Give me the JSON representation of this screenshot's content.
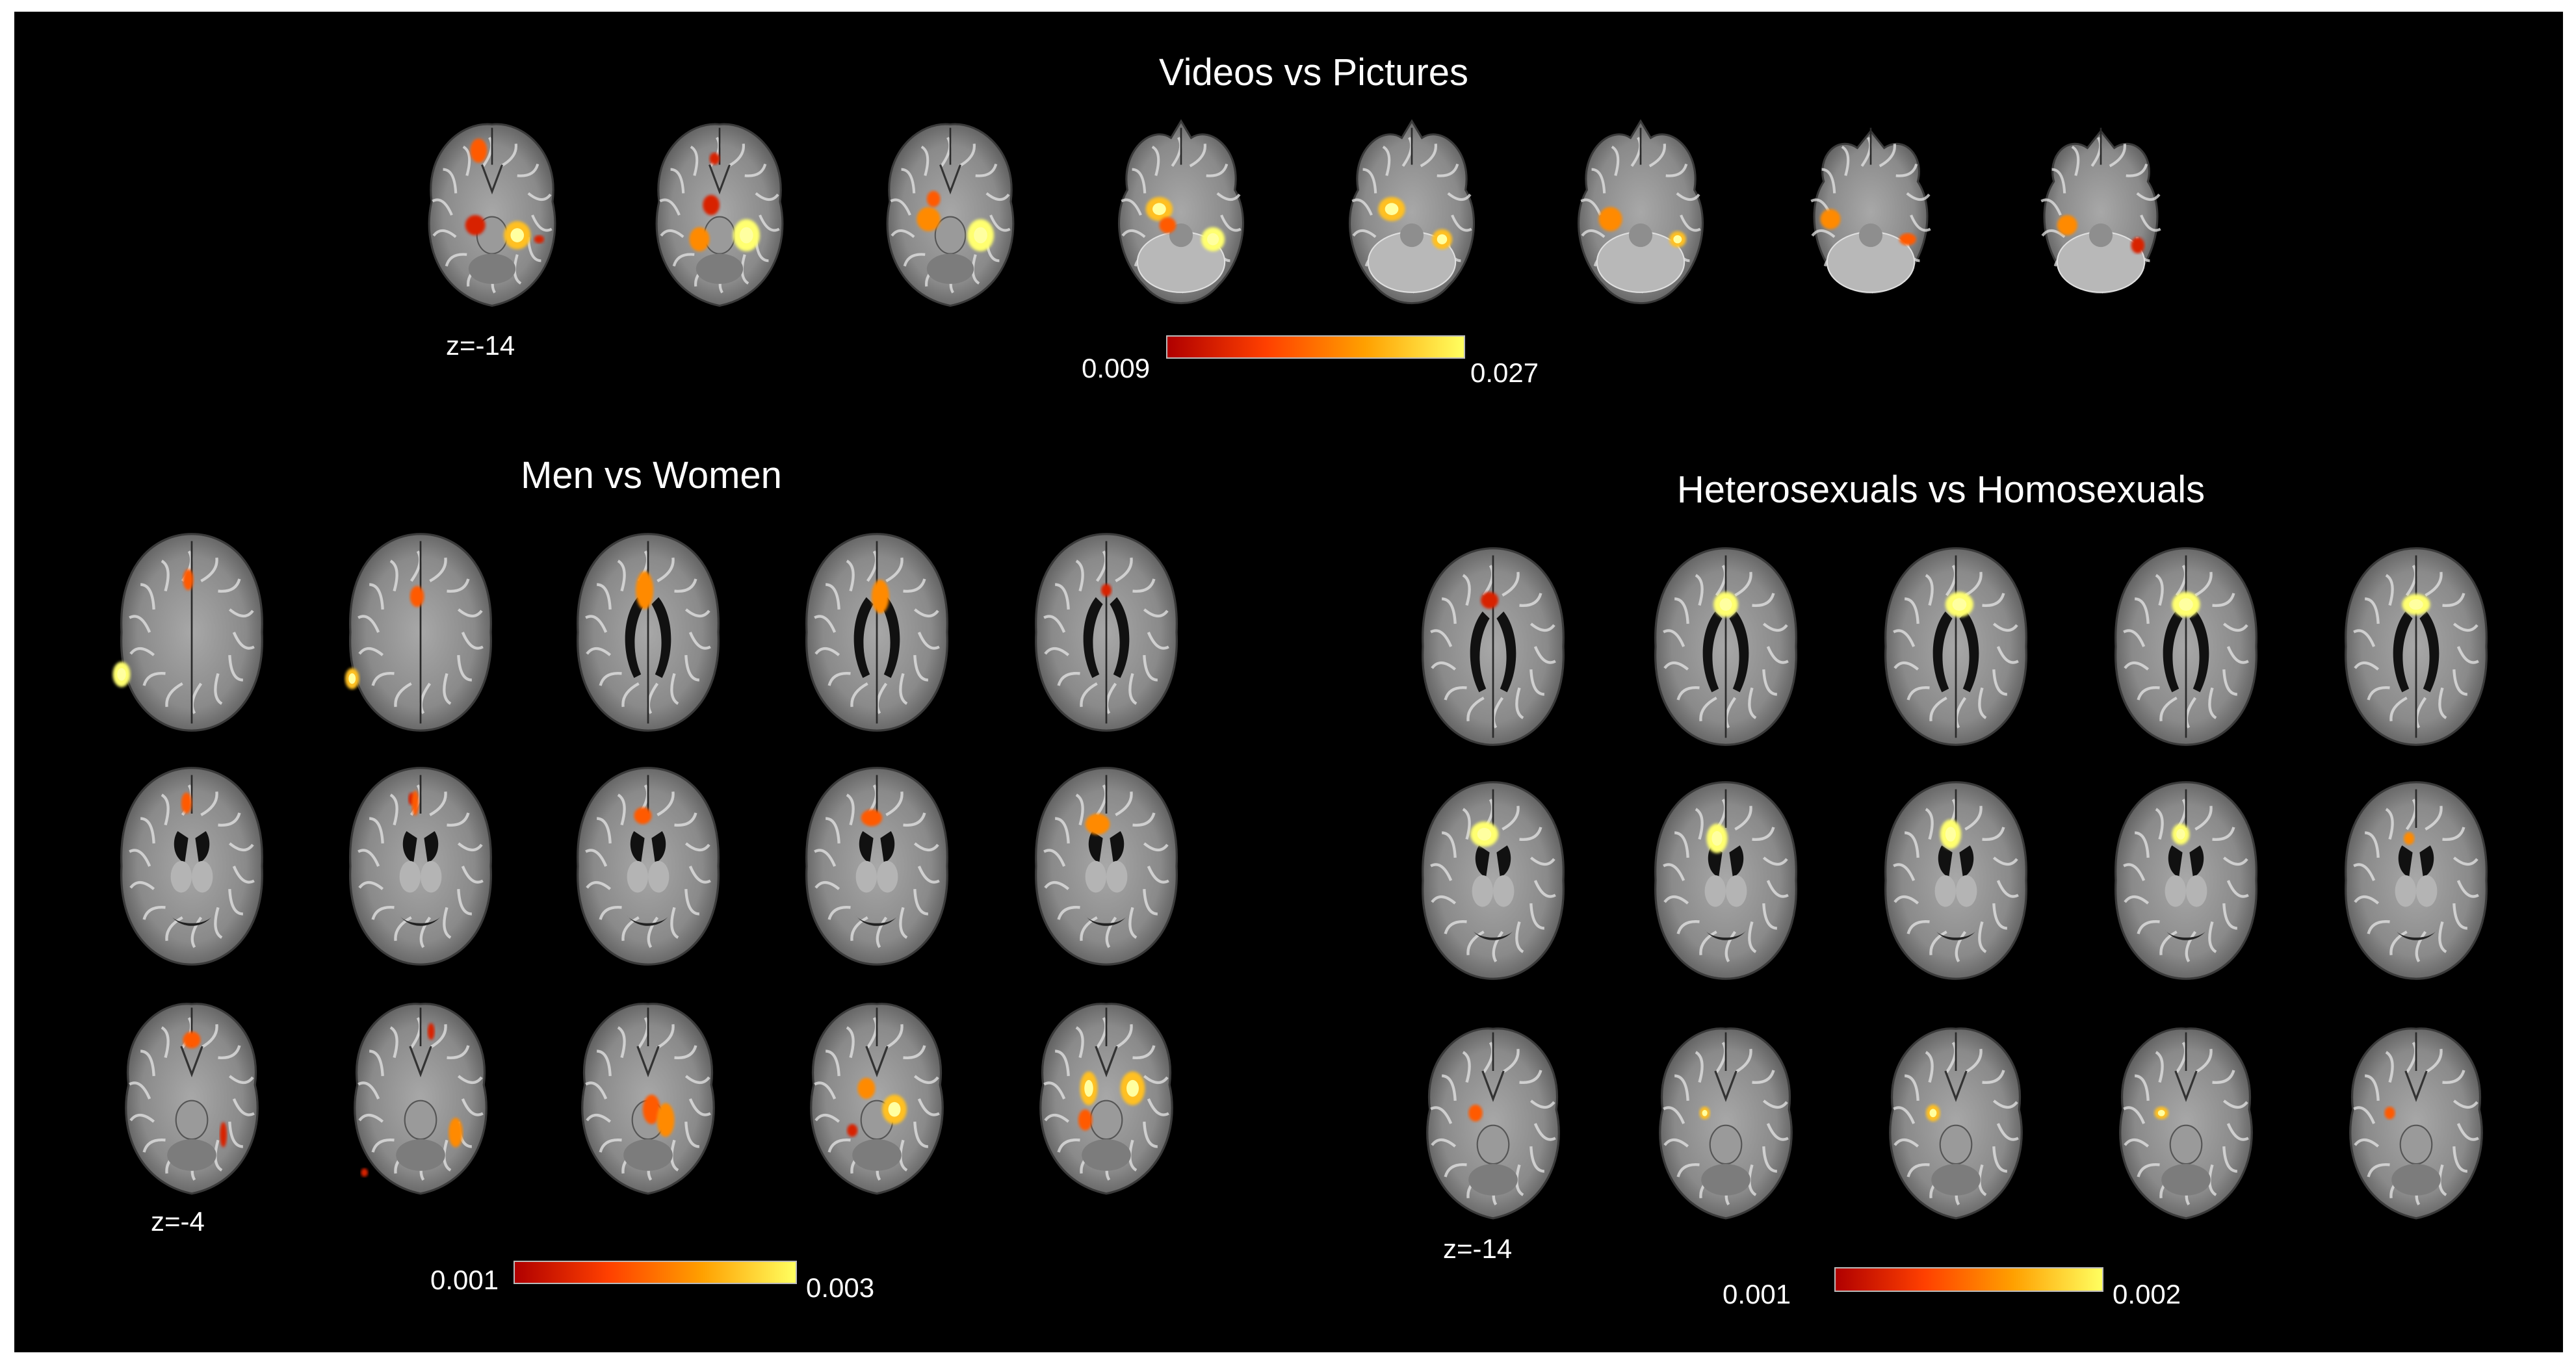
{
  "figure": {
    "background": "#000000",
    "panels": [
      {
        "id": "videos-vs-pictures",
        "title": "Videos vs Pictures",
        "z_label": "z=-14",
        "colorbar": {
          "min_label": "0.009",
          "max_label": "0.027",
          "colors": [
            "#b00000",
            "#ff4000",
            "#ffa000",
            "#ffff60"
          ]
        },
        "slices": [
          {
            "level": "ventral",
            "blobs": [
              [
                0.42,
                0.18,
                0.05,
                0.06,
                0.7
              ],
              [
                0.4,
                0.55,
                0.06,
                0.05,
                0.6
              ],
              [
                0.65,
                0.6,
                0.08,
                0.07,
                0.9
              ],
              [
                0.78,
                0.62,
                0.03,
                0.02,
                0.4
              ]
            ]
          },
          {
            "level": "ventral",
            "blobs": [
              [
                0.45,
                0.45,
                0.05,
                0.05,
                0.6
              ],
              [
                0.38,
                0.62,
                0.06,
                0.06,
                0.8
              ],
              [
                0.66,
                0.6,
                0.08,
                0.08,
                0.95
              ],
              [
                0.47,
                0.22,
                0.03,
                0.03,
                0.5
              ]
            ]
          },
          {
            "level": "ventral",
            "blobs": [
              [
                0.37,
                0.52,
                0.07,
                0.06,
                0.8
              ],
              [
                0.68,
                0.6,
                0.08,
                0.08,
                1.0
              ],
              [
                0.4,
                0.42,
                0.04,
                0.04,
                0.7
              ]
            ]
          },
          {
            "level": "cerebellar",
            "blobs": [
              [
                0.37,
                0.47,
                0.08,
                0.06,
                0.9
              ],
              [
                0.42,
                0.55,
                0.05,
                0.04,
                0.7
              ],
              [
                0.69,
                0.62,
                0.07,
                0.06,
                1.0
              ]
            ]
          },
          {
            "level": "cerebellar",
            "blobs": [
              [
                0.38,
                0.47,
                0.08,
                0.06,
                0.85
              ],
              [
                0.68,
                0.62,
                0.06,
                0.05,
                0.9
              ]
            ]
          },
          {
            "level": "cerebellar",
            "blobs": [
              [
                0.32,
                0.52,
                0.07,
                0.06,
                0.8
              ],
              [
                0.72,
                0.62,
                0.05,
                0.04,
                0.85
              ]
            ]
          },
          {
            "level": "low-cerebellar",
            "blobs": [
              [
                0.26,
                0.52,
                0.06,
                0.05,
                0.8
              ],
              [
                0.72,
                0.62,
                0.05,
                0.03,
                0.7
              ]
            ]
          },
          {
            "level": "low-cerebellar",
            "blobs": [
              [
                0.3,
                0.55,
                0.06,
                0.05,
                0.8
              ],
              [
                0.72,
                0.65,
                0.04,
                0.04,
                0.6
              ]
            ]
          }
        ]
      },
      {
        "id": "men-vs-women",
        "title": "Men vs Women",
        "z_label": "z=-4",
        "colorbar": {
          "min_label": "0.001",
          "max_label": "0.003",
          "colors": [
            "#b00000",
            "#ff4000",
            "#ffa000",
            "#ffff60"
          ]
        },
        "rows": [
          [
            {
              "level": "dorsal",
              "blobs": [
                [
                  0.48,
                  0.25,
                  0.03,
                  0.05,
                  0.7
                ],
                [
                  0.1,
                  0.7,
                  0.05,
                  0.06,
                  1.0
                ]
              ]
            },
            {
              "level": "dorsal",
              "blobs": [
                [
                  0.48,
                  0.33,
                  0.04,
                  0.05,
                  0.7
                ],
                [
                  0.11,
                  0.72,
                  0.04,
                  0.05,
                  0.9
                ]
              ]
            },
            {
              "level": "ventricle",
              "blobs": [
                [
                  0.48,
                  0.3,
                  0.05,
                  0.09,
                  0.8
                ]
              ]
            },
            {
              "level": "ventricle",
              "blobs": [
                [
                  0.52,
                  0.33,
                  0.05,
                  0.08,
                  0.75
                ]
              ]
            },
            {
              "level": "ventricle",
              "blobs": [
                [
                  0.5,
                  0.3,
                  0.03,
                  0.03,
                  0.6
                ]
              ]
            }
          ],
          [
            {
              "level": "thalamic",
              "blobs": [
                [
                  0.47,
                  0.2,
                  0.03,
                  0.05,
                  0.7
                ]
              ]
            },
            {
              "level": "thalamic",
              "blobs": [
                [
                  0.45,
                  0.18,
                  0.02,
                  0.03,
                  0.6
                ],
                [
                  0.47,
                  0.2,
                  0.02,
                  0.06,
                  0.7
                ]
              ]
            },
            {
              "level": "thalamic",
              "blobs": [
                [
                  0.47,
                  0.26,
                  0.05,
                  0.04,
                  0.7
                ]
              ]
            },
            {
              "level": "thalamic",
              "blobs": [
                [
                  0.47,
                  0.27,
                  0.06,
                  0.04,
                  0.7
                ]
              ]
            },
            {
              "level": "thalamic",
              "blobs": [
                [
                  0.45,
                  0.3,
                  0.07,
                  0.05,
                  0.75
                ]
              ]
            }
          ],
          [
            {
              "level": "ventral",
              "blobs": [
                [
                  0.5,
                  0.22,
                  0.05,
                  0.04,
                  0.7
                ],
                [
                  0.68,
                  0.67,
                  0.02,
                  0.06,
                  0.6
                ]
              ]
            },
            {
              "level": "ventral",
              "blobs": [
                [
                  0.56,
                  0.18,
                  0.02,
                  0.04,
                  0.6
                ],
                [
                  0.7,
                  0.66,
                  0.04,
                  0.07,
                  0.75
                ],
                [
                  0.18,
                  0.85,
                  0.02,
                  0.02,
                  0.5
                ]
              ]
            },
            {
              "level": "ventral",
              "blobs": [
                [
                  0.52,
                  0.55,
                  0.05,
                  0.07,
                  0.7
                ],
                [
                  0.6,
                  0.6,
                  0.05,
                  0.08,
                  0.8
                ]
              ]
            },
            {
              "level": "ventral",
              "blobs": [
                [
                  0.44,
                  0.45,
                  0.05,
                  0.05,
                  0.8
                ],
                [
                  0.6,
                  0.55,
                  0.07,
                  0.07,
                  0.85
                ],
                [
                  0.36,
                  0.65,
                  0.03,
                  0.03,
                  0.6
                ]
              ]
            },
            {
              "level": "ventral",
              "blobs": [
                [
                  0.4,
                  0.45,
                  0.05,
                  0.08,
                  0.9
                ],
                [
                  0.65,
                  0.45,
                  0.07,
                  0.08,
                  0.85
                ],
                [
                  0.38,
                  0.6,
                  0.04,
                  0.05,
                  0.7
                ]
              ]
            }
          ]
        ]
      },
      {
        "id": "hetero-vs-homo",
        "title": "Heterosexuals vs Homosexuals",
        "z_label": "z=-14",
        "colorbar": {
          "min_label": "0.001",
          "max_label": "0.002",
          "colors": [
            "#b00000",
            "#ff4000",
            "#ffa000",
            "#ffff60"
          ]
        },
        "rows": [
          [
            {
              "level": "ventricle",
              "blobs": [
                [
                  0.48,
                  0.28,
                  0.05,
                  0.04,
                  0.6
                ]
              ]
            },
            {
              "level": "ventricle",
              "blobs": [
                [
                  0.5,
                  0.3,
                  0.07,
                  0.06,
                  1.0
                ]
              ]
            },
            {
              "level": "ventricle",
              "blobs": [
                [
                  0.52,
                  0.3,
                  0.08,
                  0.06,
                  1.0
                ]
              ]
            },
            {
              "level": "ventricle",
              "blobs": [
                [
                  0.5,
                  0.3,
                  0.08,
                  0.06,
                  1.0
                ]
              ]
            },
            {
              "level": "ventricle",
              "blobs": [
                [
                  0.5,
                  0.3,
                  0.08,
                  0.05,
                  1.0
                ]
              ]
            }
          ],
          [
            {
              "level": "thalamic",
              "blobs": [
                [
                  0.45,
                  0.28,
                  0.08,
                  0.06,
                  1.0
                ]
              ]
            },
            {
              "level": "thalamic",
              "blobs": [
                [
                  0.45,
                  0.3,
                  0.06,
                  0.07,
                  0.95
                ]
              ]
            },
            {
              "level": "thalamic",
              "blobs": [
                [
                  0.47,
                  0.28,
                  0.06,
                  0.07,
                  0.95
                ]
              ]
            },
            {
              "level": "thalamic",
              "blobs": [
                [
                  0.47,
                  0.28,
                  0.05,
                  0.05,
                  0.95
                ]
              ]
            },
            {
              "level": "thalamic",
              "blobs": [
                [
                  0.46,
                  0.3,
                  0.03,
                  0.03,
                  0.8
                ]
              ]
            }
          ],
          [
            {
              "level": "ventral",
              "blobs": [
                [
                  0.4,
                  0.45,
                  0.04,
                  0.04,
                  0.7
                ]
              ]
            },
            {
              "level": "ventral",
              "blobs": [
                [
                  0.38,
                  0.45,
                  0.03,
                  0.03,
                  0.9
                ]
              ]
            },
            {
              "level": "ventral",
              "blobs": [
                [
                  0.37,
                  0.45,
                  0.04,
                  0.04,
                  0.9
                ]
              ]
            },
            {
              "level": "ventral",
              "blobs": [
                [
                  0.36,
                  0.45,
                  0.04,
                  0.03,
                  0.9
                ]
              ]
            },
            {
              "level": "ventral",
              "blobs": [
                [
                  0.35,
                  0.45,
                  0.03,
                  0.03,
                  0.7
                ]
              ]
            }
          ]
        ]
      }
    ]
  }
}
